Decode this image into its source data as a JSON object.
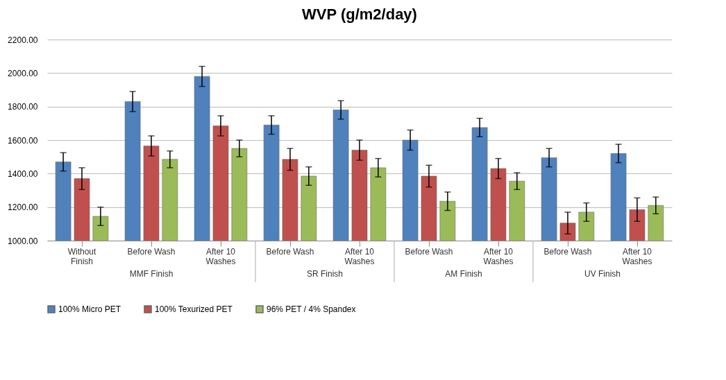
{
  "chart_data": {
    "type": "bar",
    "title": "WVP (g/m2/day)",
    "categories": [
      "Without Finish",
      "Before Wash",
      "After 10 Washes",
      "Before Wash",
      "After 10 Washes",
      "Before Wash",
      "After 10 Washes",
      "Before Wash",
      "After 10 Washes"
    ],
    "series": [
      {
        "name": "100% Micro PET",
        "color": "#4f81bd",
        "values": [
          1470,
          1830,
          1980,
          1690,
          1780,
          1600,
          1675,
          1495,
          1520
        ],
        "errors": [
          55,
          60,
          60,
          55,
          55,
          60,
          55,
          55,
          55
        ]
      },
      {
        "name": "100% Texurized PET",
        "color": "#c0504d",
        "values": [
          1370,
          1565,
          1685,
          1485,
          1540,
          1385,
          1430,
          1105,
          1185
        ],
        "errors": [
          65,
          60,
          60,
          65,
          60,
          65,
          60,
          65,
          70
        ]
      },
      {
        "name": "96% PET / 4% Spandex",
        "color": "#9bbb59",
        "values": [
          1145,
          1485,
          1550,
          1385,
          1435,
          1235,
          1355,
          1170,
          1210
        ],
        "errors": [
          55,
          50,
          50,
          55,
          55,
          55,
          50,
          55,
          50
        ]
      }
    ],
    "annotations": [
      "MMF Finish",
      "SR Finish",
      "AM Finish",
      "UV Finish"
    ],
    "ylim": [
      1000,
      2200
    ],
    "yticks": [
      {
        "value": 1000,
        "label": "1000.00"
      },
      {
        "value": 1200,
        "label": "1200.00"
      },
      {
        "value": 1400,
        "label": "1400.00"
      },
      {
        "value": 1600,
        "label": "1600.00"
      },
      {
        "value": 1800,
        "label": "1800.00"
      },
      {
        "value": 2000,
        "label": "2000.00"
      },
      {
        "value": 2200,
        "label": "2200.00"
      }
    ],
    "grid": true,
    "legend": "bottom"
  }
}
